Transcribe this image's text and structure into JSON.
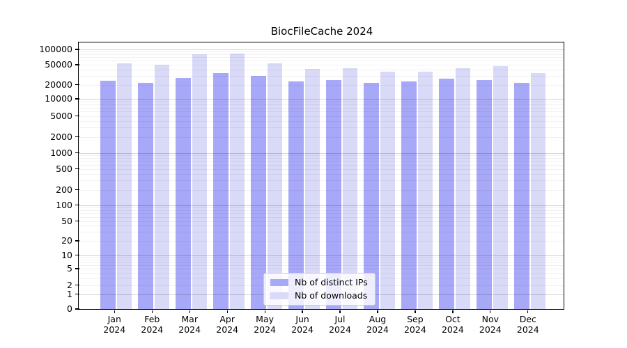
{
  "figure": {
    "title": "BiocFileCache 2024"
  },
  "chart_data": {
    "type": "bar",
    "title": "BiocFileCache 2024",
    "categories": [
      "Jan",
      "Feb",
      "Mar",
      "Apr",
      "May",
      "Jun",
      "Jul",
      "Aug",
      "Sep",
      "Oct",
      "Nov",
      "Dec"
    ],
    "category_year": "2024",
    "series": [
      {
        "name": "Nb of distinct IPs",
        "color": "#a8a8f8",
        "values": [
          24000,
          22000,
          27500,
          34000,
          30000,
          23500,
          25000,
          22000,
          23000,
          26000,
          25000,
          22000
        ]
      },
      {
        "name": "Nb of downloads",
        "color": "#d9d9f8",
        "values": [
          53000,
          49500,
          80000,
          84000,
          53000,
          41000,
          42000,
          36000,
          36500,
          43000,
          47000,
          34000
        ]
      }
    ],
    "yscale": "log-like (0 pinned at baseline)",
    "y_tick_labels": [
      "0",
      "1",
      "2",
      "5",
      "10",
      "20",
      "50",
      "100",
      "200",
      "500",
      "1000",
      "2000",
      "5000",
      "10000",
      "20000",
      "50000",
      "100000"
    ],
    "ylim": [
      0,
      130000
    ],
    "grid": "horizontal major and minor gridlines",
    "legend_position": "lower center inside plot",
    "colors": {
      "frame": "#000000",
      "background": "#ffffff"
    }
  }
}
